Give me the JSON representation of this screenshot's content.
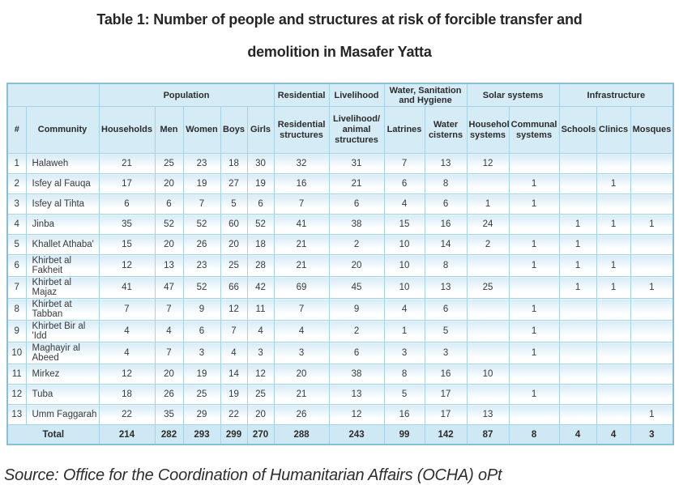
{
  "title_line1": "Table 1: Number of people and structures at risk of forcible transfer and",
  "title_line2": "demolition in Masafer Yatta",
  "source": "Source: Office for the Coordination of Humanitarian Affairs (OCHA) oPt",
  "colors": {
    "header_bg": "#d5ecf6",
    "row_tint_top": "#d7ecf7",
    "total_bg": "#cfe9f4",
    "border": "#a5d3e5",
    "outer_border": "#85c0d6",
    "text": "#2d2d2d"
  },
  "chart_data": {
    "type": "table",
    "groups": [
      {
        "label": "",
        "colspan": 2
      },
      {
        "label": "Population",
        "colspan": 5
      },
      {
        "label": "Residential",
        "colspan": 1
      },
      {
        "label": "Livelihood",
        "colspan": 1
      },
      {
        "label": "Water, Sanitation and Hygiene",
        "colspan": 2
      },
      {
        "label": "Solar systems",
        "colspan": 2
      },
      {
        "label": "Infrastructure",
        "colspan": 3
      }
    ],
    "columns": [
      "#",
      "Community",
      "Households",
      "Men",
      "Women",
      "Boys",
      "Girls",
      "Residential structures",
      "Livelihood/ animal structures",
      "Latrines",
      "Water cisterns",
      "Household systems",
      "Communal systems",
      "Schools",
      "Clinics",
      "Mosques"
    ],
    "rows": [
      {
        "num": "1",
        "community": "Halaweh",
        "values": [
          "21",
          "25",
          "23",
          "18",
          "30",
          "32",
          "31",
          "7",
          "13",
          "12",
          "",
          "",
          "",
          ""
        ]
      },
      {
        "num": "2",
        "community": "Isfey al Fauqa",
        "values": [
          "17",
          "20",
          "19",
          "27",
          "19",
          "16",
          "21",
          "6",
          "8",
          "",
          "1",
          "",
          "1",
          ""
        ]
      },
      {
        "num": "3",
        "community": "Isfey al Tihta",
        "values": [
          "6",
          "6",
          "7",
          "5",
          "6",
          "7",
          "6",
          "4",
          "6",
          "1",
          "1",
          "",
          "",
          ""
        ]
      },
      {
        "num": "4",
        "community": "Jinba",
        "values": [
          "35",
          "52",
          "52",
          "60",
          "52",
          "41",
          "38",
          "15",
          "16",
          "24",
          "",
          "1",
          "1",
          "1"
        ]
      },
      {
        "num": "5",
        "community": "Khallet Athaba'",
        "values": [
          "15",
          "20",
          "26",
          "20",
          "18",
          "21",
          "2",
          "10",
          "14",
          "2",
          "1",
          "1",
          "",
          ""
        ]
      },
      {
        "num": "6",
        "community": "Khirbet al Fakheit",
        "values": [
          "12",
          "13",
          "23",
          "25",
          "28",
          "21",
          "20",
          "10",
          "8",
          "",
          "1",
          "1",
          "1",
          ""
        ]
      },
      {
        "num": "7",
        "community": "Khirbet al Majaz",
        "values": [
          "41",
          "47",
          "52",
          "66",
          "42",
          "69",
          "45",
          "10",
          "13",
          "25",
          "",
          "1",
          "1",
          "1"
        ]
      },
      {
        "num": "8",
        "community": "Khirbet at Tabban",
        "values": [
          "7",
          "7",
          "9",
          "12",
          "11",
          "7",
          "9",
          "4",
          "6",
          "",
          "1",
          "",
          "",
          ""
        ]
      },
      {
        "num": "9",
        "community": "Khirbet Bir al 'Idd",
        "values": [
          "4",
          "4",
          "6",
          "7",
          "4",
          "4",
          "2",
          "1",
          "5",
          "",
          "1",
          "",
          "",
          ""
        ]
      },
      {
        "num": "10",
        "community": "Maghayir al Abeed",
        "values": [
          "4",
          "7",
          "3",
          "4",
          "3",
          "3",
          "6",
          "3",
          "3",
          "",
          "1",
          "",
          "",
          ""
        ]
      },
      {
        "num": "11",
        "community": "Mirkez",
        "values": [
          "12",
          "20",
          "19",
          "14",
          "12",
          "20",
          "38",
          "8",
          "16",
          "10",
          "",
          "",
          "",
          ""
        ]
      },
      {
        "num": "12",
        "community": "Tuba",
        "values": [
          "18",
          "26",
          "25",
          "19",
          "25",
          "21",
          "13",
          "5",
          "17",
          "",
          "1",
          "",
          "",
          ""
        ]
      },
      {
        "num": "13",
        "community": "Umm Faggarah",
        "values": [
          "22",
          "35",
          "29",
          "22",
          "20",
          "26",
          "12",
          "16",
          "17",
          "13",
          "",
          "",
          "",
          "1"
        ]
      }
    ],
    "total": {
      "label": "Total",
      "values": [
        "214",
        "282",
        "293",
        "299",
        "270",
        "288",
        "243",
        "99",
        "142",
        "87",
        "8",
        "4",
        "4",
        "3"
      ]
    }
  }
}
